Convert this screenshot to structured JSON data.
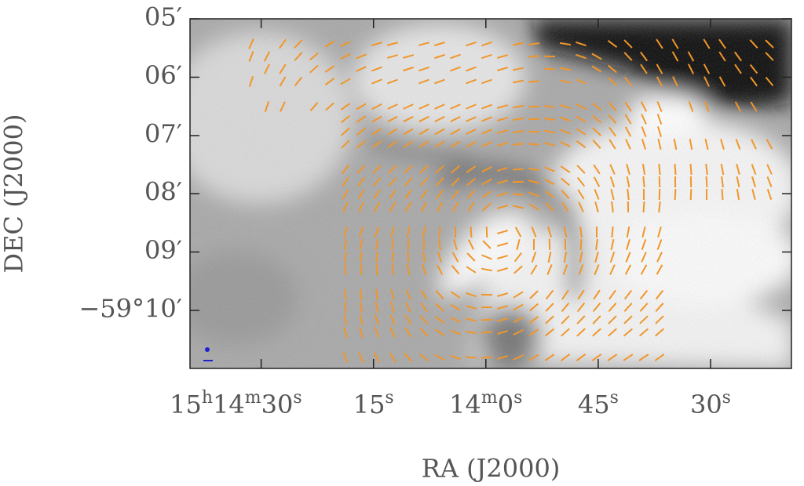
{
  "chart_data": {
    "type": "image",
    "xlabel": "RA (J2000)",
    "ylabel": "DEC (J2000)",
    "xlim": [
      99.5,
      19.2
    ],
    "xticks": [
      {
        "value": 90,
        "label": "15h14m30s"
      },
      {
        "value": 75,
        "label": "15s"
      },
      {
        "value": 60,
        "label": "14m0s"
      },
      {
        "value": 45,
        "label": "45s"
      },
      {
        "value": 30,
        "label": "30s"
      }
    ],
    "ylim": [
      -59.1833,
      -59.0833
    ],
    "yticks": [
      {
        "value": -59.0833,
        "label": "05′"
      },
      {
        "value": -59.1,
        "label": "06′"
      },
      {
        "value": -59.1167,
        "label": "07′"
      },
      {
        "value": -59.1333,
        "label": "08′"
      },
      {
        "value": -59.15,
        "label": "09′"
      },
      {
        "value": -59.1667,
        "label": "−59°10′"
      }
    ]
  }
}
